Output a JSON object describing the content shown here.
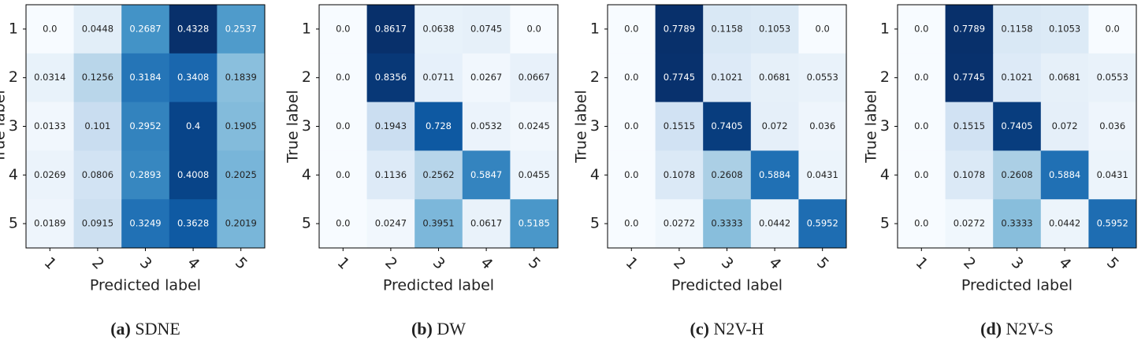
{
  "chart_data": [
    {
      "type": "heatmap",
      "xlabel": "Predicted label",
      "ylabel": "True label",
      "caption_tag": "(a)",
      "caption": "SDNE",
      "x": [
        "1",
        "2",
        "3",
        "4",
        "5"
      ],
      "y": [
        "1",
        "2",
        "3",
        "4",
        "5"
      ],
      "colormap": "Blues",
      "values": [
        [
          0.0,
          0.0448,
          0.2687,
          0.4328,
          0.2537
        ],
        [
          0.0314,
          0.1256,
          0.3184,
          0.3408,
          0.1839
        ],
        [
          0.0133,
          0.101,
          0.2952,
          0.4,
          0.1905
        ],
        [
          0.0269,
          0.0806,
          0.2893,
          0.4008,
          0.2025
        ],
        [
          0.0189,
          0.0915,
          0.3249,
          0.3628,
          0.2019
        ]
      ],
      "value_labels": [
        [
          "0.0",
          "0.0448",
          "0.2687",
          "0.4328",
          "0.2537"
        ],
        [
          "0.0314",
          "0.1256",
          "0.3184",
          "0.3408",
          "0.1839"
        ],
        [
          "0.0133",
          "0.101",
          "0.2952",
          "0.4",
          "0.1905"
        ],
        [
          "0.0269",
          "0.0806",
          "0.2893",
          "0.4008",
          "0.2025"
        ],
        [
          "0.0189",
          "0.0915",
          "0.3249",
          "0.3628",
          "0.2019"
        ]
      ]
    },
    {
      "type": "heatmap",
      "xlabel": "Predicted label",
      "ylabel": "True label",
      "caption_tag": "(b)",
      "caption": "DW",
      "x": [
        "1",
        "2",
        "3",
        "4",
        "5"
      ],
      "y": [
        "1",
        "2",
        "3",
        "4",
        "5"
      ],
      "colormap": "Blues",
      "values": [
        [
          0,
          0.8617,
          0.0638,
          0.0745,
          0
        ],
        [
          0,
          0.8356,
          0.0711,
          0.0267,
          0.0667
        ],
        [
          0,
          0.1943,
          0.728,
          0.0532,
          0.0245
        ],
        [
          0,
          0.1136,
          0.2562,
          0.5847,
          0.0455
        ],
        [
          0,
          0.0247,
          0.3951,
          0.0617,
          0.5185
        ]
      ],
      "value_labels": [
        [
          "0.0",
          "0.8617",
          "0.0638",
          "0.0745",
          "0.0"
        ],
        [
          "0.0",
          "0.8356",
          "0.0711",
          "0.0267",
          "0.0667"
        ],
        [
          "0.0",
          "0.1943",
          "0.728",
          "0.0532",
          "0.0245"
        ],
        [
          "0.0",
          "0.1136",
          "0.2562",
          "0.5847",
          "0.0455"
        ],
        [
          "0.0",
          "0.0247",
          "0.3951",
          "0.0617",
          "0.5185"
        ]
      ]
    },
    {
      "type": "heatmap",
      "xlabel": "Predicted label",
      "ylabel": "True label",
      "caption_tag": "(c)",
      "caption": "N2V-H",
      "x": [
        "1",
        "2",
        "3",
        "4",
        "5"
      ],
      "y": [
        "1",
        "2",
        "3",
        "4",
        "5"
      ],
      "colormap": "Blues",
      "values": [
        [
          0,
          0.7789,
          0.1158,
          0.1053,
          0
        ],
        [
          0,
          0.7745,
          0.1021,
          0.0681,
          0.0553
        ],
        [
          0,
          0.1515,
          0.7405,
          0.072,
          0.036
        ],
        [
          0,
          0.1078,
          0.2608,
          0.5884,
          0.0431
        ],
        [
          0,
          0.0272,
          0.3333,
          0.0442,
          0.5952
        ]
      ],
      "value_labels": [
        [
          "0.0",
          "0.7789",
          "0.1158",
          "0.1053",
          "0.0"
        ],
        [
          "0.0",
          "0.7745",
          "0.1021",
          "0.0681",
          "0.0553"
        ],
        [
          "0.0",
          "0.1515",
          "0.7405",
          "0.072",
          "0.036"
        ],
        [
          "0.0",
          "0.1078",
          "0.2608",
          "0.5884",
          "0.0431"
        ],
        [
          "0.0",
          "0.0272",
          "0.3333",
          "0.0442",
          "0.5952"
        ]
      ]
    },
    {
      "type": "heatmap",
      "xlabel": "Predicted label",
      "ylabel": "True label",
      "caption_tag": "(d)",
      "caption": "N2V-S",
      "x": [
        "1",
        "2",
        "3",
        "4",
        "5"
      ],
      "y": [
        "1",
        "2",
        "3",
        "4",
        "5"
      ],
      "colormap": "Blues",
      "values": [
        [
          0,
          0.7789,
          0.1158,
          0.1053,
          0
        ],
        [
          0,
          0.7745,
          0.1021,
          0.0681,
          0.0553
        ],
        [
          0,
          0.1515,
          0.7405,
          0.072,
          0.036
        ],
        [
          0,
          0.1078,
          0.2608,
          0.5884,
          0.0431
        ],
        [
          0,
          0.0272,
          0.3333,
          0.0442,
          0.5952
        ]
      ],
      "value_labels": [
        [
          "0.0",
          "0.7789",
          "0.1158",
          "0.1053",
          "0.0"
        ],
        [
          "0.0",
          "0.7745",
          "0.1021",
          "0.0681",
          "0.0553"
        ],
        [
          "0.0",
          "0.1515",
          "0.7405",
          "0.072",
          "0.036"
        ],
        [
          "0.0",
          "0.1078",
          "0.2608",
          "0.5884",
          "0.0431"
        ],
        [
          "0.0",
          "0.0272",
          "0.3333",
          "0.0442",
          "0.5952"
        ]
      ]
    }
  ]
}
